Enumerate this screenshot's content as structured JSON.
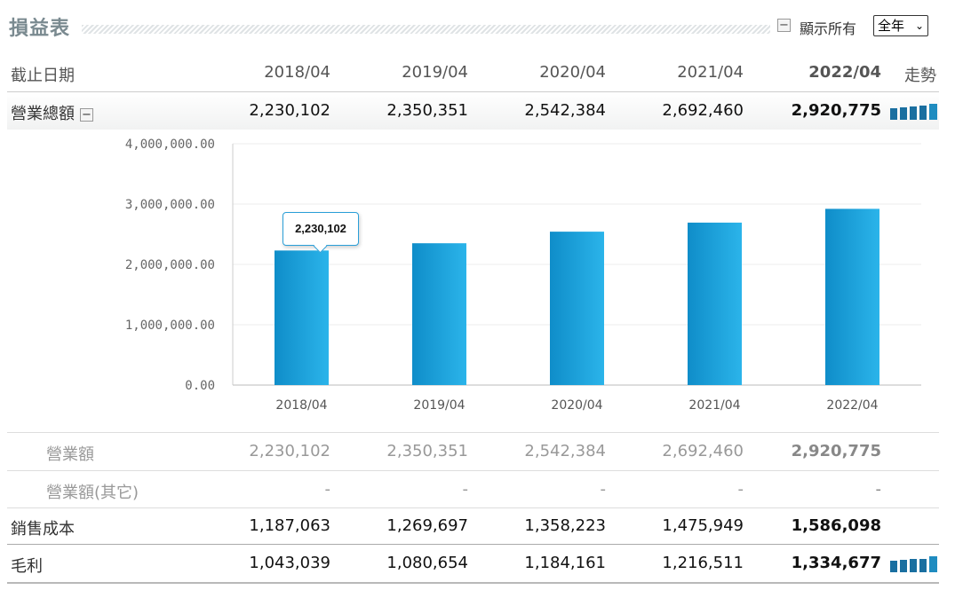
{
  "header": {
    "title": "損益表",
    "toggle_symbol": "−",
    "show_all": "顯示所有",
    "period_select": "全年"
  },
  "table": {
    "date_label": "截止日期",
    "trend_label": "走勢",
    "periods": [
      "2018/04",
      "2019/04",
      "2020/04",
      "2021/04",
      "2022/04"
    ],
    "rows": [
      {
        "label": "營業總額",
        "values": [
          "2,230,102",
          "2,350,351",
          "2,542,384",
          "2,692,460",
          "2,920,775"
        ]
      },
      {
        "label": "營業額",
        "values": [
          "2,230,102",
          "2,350,351",
          "2,542,384",
          "2,692,460",
          "2,920,775"
        ]
      },
      {
        "label": "營業額(其它)",
        "values": [
          "-",
          "-",
          "-",
          "-",
          "-"
        ]
      },
      {
        "label": "銷售成本",
        "values": [
          "1,187,063",
          "1,269,697",
          "1,358,223",
          "1,475,949",
          "1,586,098"
        ]
      },
      {
        "label": "毛利",
        "values": [
          "1,043,039",
          "1,080,654",
          "1,184,161",
          "1,216,511",
          "1,334,677"
        ]
      }
    ]
  },
  "tooltip": "2,230,102",
  "colors": {
    "bar_dark": "#0f8dc9",
    "bar_light": "#2bb4ea",
    "spark": "#1a6fa0"
  },
  "chart_data": {
    "type": "bar",
    "categories": [
      "2018/04",
      "2019/04",
      "2020/04",
      "2021/04",
      "2022/04"
    ],
    "values": [
      2230102,
      2350351,
      2542384,
      2692460,
      2920775
    ],
    "yticks": [
      "0.00",
      "1,000,000.00",
      "2,000,000.00",
      "3,000,000.00",
      "4,000,000.00"
    ],
    "ylim": [
      0,
      4000000
    ],
    "grid": true,
    "legend": "none"
  }
}
